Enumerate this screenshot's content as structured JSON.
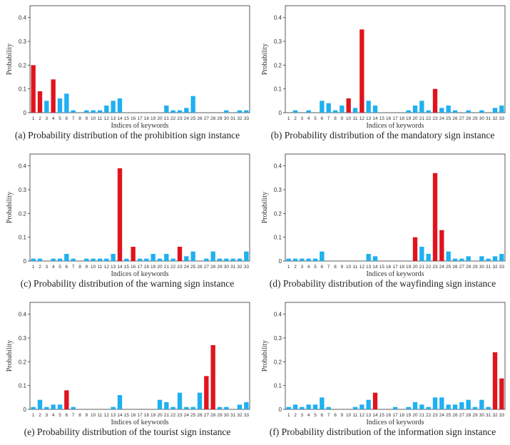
{
  "chart_data": [
    {
      "id": "a",
      "type": "bar",
      "caption": "(a) Probability distribution of the prohibition sign instance",
      "xlabel": "Indices of keywords",
      "ylabel": "Probability",
      "ylim": [
        0,
        0.45
      ],
      "yticks": [
        "0",
        "0.1",
        "0.2",
        "0.3",
        "0.4"
      ],
      "categories": [
        "1",
        "2",
        "3",
        "4",
        "5",
        "6",
        "7",
        "8",
        "9",
        "10",
        "11",
        "12",
        "13",
        "14",
        "15",
        "16",
        "17",
        "18",
        "19",
        "20",
        "21",
        "22",
        "23",
        "24",
        "25",
        "26",
        "27",
        "28",
        "29",
        "30",
        "31",
        "32",
        "33"
      ],
      "highlight": [
        1,
        2,
        4
      ],
      "values": [
        0.2,
        0.09,
        0.05,
        0.14,
        0.06,
        0.08,
        0.01,
        0,
        0.01,
        0.01,
        0.01,
        0.03,
        0.05,
        0.06,
        0,
        0,
        0,
        0,
        0,
        0,
        0.03,
        0.01,
        0.01,
        0.02,
        0.07,
        0,
        0,
        0,
        0,
        0.01,
        0,
        0.01,
        0.01
      ]
    },
    {
      "id": "b",
      "type": "bar",
      "caption": "(b) Probability distribution of the mandatory sign instance",
      "xlabel": "Indices of keywords",
      "ylabel": "Probability",
      "ylim": [
        0,
        0.45
      ],
      "yticks": [
        "0",
        "0.1",
        "0.2",
        "0.3",
        "0.4"
      ],
      "categories": [
        "1",
        "2",
        "3",
        "4",
        "5",
        "6",
        "7",
        "8",
        "9",
        "10",
        "11",
        "12",
        "13",
        "14",
        "15",
        "16",
        "17",
        "18",
        "19",
        "20",
        "21",
        "22",
        "23",
        "24",
        "25",
        "26",
        "27",
        "28",
        "29",
        "30",
        "31",
        "32",
        "33"
      ],
      "highlight": [
        10,
        12,
        23
      ],
      "values": [
        0,
        0.01,
        0,
        0.01,
        0,
        0.05,
        0.04,
        0.01,
        0.03,
        0.06,
        0.02,
        0.35,
        0.05,
        0.03,
        0,
        0,
        0,
        0,
        0.01,
        0.03,
        0.05,
        0.01,
        0.1,
        0.02,
        0.03,
        0.01,
        0,
        0.01,
        0,
        0.01,
        0,
        0.02,
        0.03
      ]
    },
    {
      "id": "c",
      "type": "bar",
      "caption": "(c) Probability distribution of the warning sign instance",
      "xlabel": "Indices of keywords",
      "ylabel": "Probability",
      "ylim": [
        0,
        0.45
      ],
      "yticks": [
        "0",
        "0.1",
        "0.2",
        "0.3",
        "0.4"
      ],
      "categories": [
        "1",
        "2",
        "3",
        "4",
        "5",
        "6",
        "7",
        "8",
        "9",
        "10",
        "11",
        "12",
        "13",
        "14",
        "15",
        "16",
        "17",
        "18",
        "19",
        "20",
        "21",
        "22",
        "23",
        "24",
        "25",
        "26",
        "27",
        "28",
        "29",
        "30",
        "31",
        "32",
        "33"
      ],
      "highlight": [
        14,
        16,
        23
      ],
      "values": [
        0.01,
        0.01,
        0,
        0.01,
        0.01,
        0.03,
        0.01,
        0,
        0.01,
        0.01,
        0.01,
        0.01,
        0.03,
        0.39,
        0.01,
        0.06,
        0.01,
        0.01,
        0.03,
        0.01,
        0.03,
        0.01,
        0.06,
        0.02,
        0.04,
        0,
        0.01,
        0.04,
        0.01,
        0.01,
        0.01,
        0.01,
        0.04
      ]
    },
    {
      "id": "d",
      "type": "bar",
      "caption": "(d) Probability distribution of the wayfinding sign instance",
      "xlabel": "Indices of keywords",
      "ylabel": "Probability",
      "ylim": [
        0,
        0.45
      ],
      "yticks": [
        "0",
        "0.1",
        "0.2",
        "0.3",
        "0.4"
      ],
      "categories": [
        "1",
        "2",
        "3",
        "4",
        "5",
        "6",
        "7",
        "8",
        "9",
        "10",
        "11",
        "12",
        "13",
        "14",
        "15",
        "16",
        "17",
        "18",
        "19",
        "20",
        "21",
        "22",
        "23",
        "24",
        "25",
        "26",
        "27",
        "28",
        "29",
        "30",
        "31",
        "32",
        "33"
      ],
      "highlight": [
        20,
        23,
        24
      ],
      "values": [
        0.01,
        0.01,
        0.01,
        0.01,
        0.01,
        0.04,
        0,
        0,
        0,
        0,
        0,
        0,
        0.03,
        0.02,
        0,
        0,
        0,
        0,
        0,
        0.1,
        0.06,
        0.03,
        0.37,
        0.13,
        0.04,
        0.01,
        0.01,
        0.02,
        0,
        0.02,
        0.01,
        0.02,
        0.03
      ]
    },
    {
      "id": "e",
      "type": "bar",
      "caption": "(e) Probability distribution of the tourist sign instance",
      "xlabel": "Indices of keywords",
      "ylabel": "Probability",
      "ylim": [
        0,
        0.45
      ],
      "yticks": [
        "0",
        "0.1",
        "0.2",
        "0.3",
        "0.4"
      ],
      "categories": [
        "1",
        "2",
        "3",
        "4",
        "5",
        "6",
        "7",
        "8",
        "9",
        "10",
        "11",
        "12",
        "13",
        "14",
        "15",
        "16",
        "17",
        "18",
        "19",
        "20",
        "21",
        "22",
        "23",
        "24",
        "25",
        "26",
        "27",
        "28",
        "29",
        "30",
        "31",
        "32",
        "33"
      ],
      "highlight": [
        6,
        27,
        28
      ],
      "values": [
        0.01,
        0.04,
        0.01,
        0.02,
        0.02,
        0.08,
        0.01,
        0,
        0,
        0,
        0,
        0,
        0.01,
        0.06,
        0,
        0,
        0,
        0,
        0,
        0.04,
        0.03,
        0.01,
        0.07,
        0.01,
        0.01,
        0.07,
        0.14,
        0.27,
        0.01,
        0.01,
        0,
        0.02,
        0.03
      ]
    },
    {
      "id": "f",
      "type": "bar",
      "caption": "(f) Probability distribution of the information sign instance",
      "xlabel": "Indices of keywords",
      "ylabel": "Probability",
      "ylim": [
        0,
        0.45
      ],
      "yticks": [
        "0",
        "0.1",
        "0.2",
        "0.3",
        "0.4"
      ],
      "categories": [
        "1",
        "2",
        "3",
        "4",
        "5",
        "6",
        "7",
        "8",
        "9",
        "10",
        "11",
        "12",
        "13",
        "14",
        "15",
        "16",
        "17",
        "18",
        "19",
        "20",
        "21",
        "22",
        "23",
        "24",
        "25",
        "26",
        "27",
        "28",
        "29",
        "30",
        "31",
        "32",
        "33"
      ],
      "highlight": [
        14,
        32,
        33
      ],
      "values": [
        0.01,
        0.02,
        0.01,
        0.02,
        0.02,
        0.05,
        0.01,
        0,
        0,
        0,
        0.01,
        0.02,
        0.04,
        0.07,
        0,
        0,
        0.01,
        0,
        0.01,
        0.03,
        0.02,
        0.01,
        0.05,
        0.05,
        0.02,
        0.02,
        0.03,
        0.04,
        0.01,
        0.04,
        0.01,
        0.24,
        0.13
      ]
    }
  ],
  "colors": {
    "normal": "#1fb0f0",
    "highlight": "#e0141e",
    "axis": "#333333",
    "tick_text": "#333333"
  }
}
